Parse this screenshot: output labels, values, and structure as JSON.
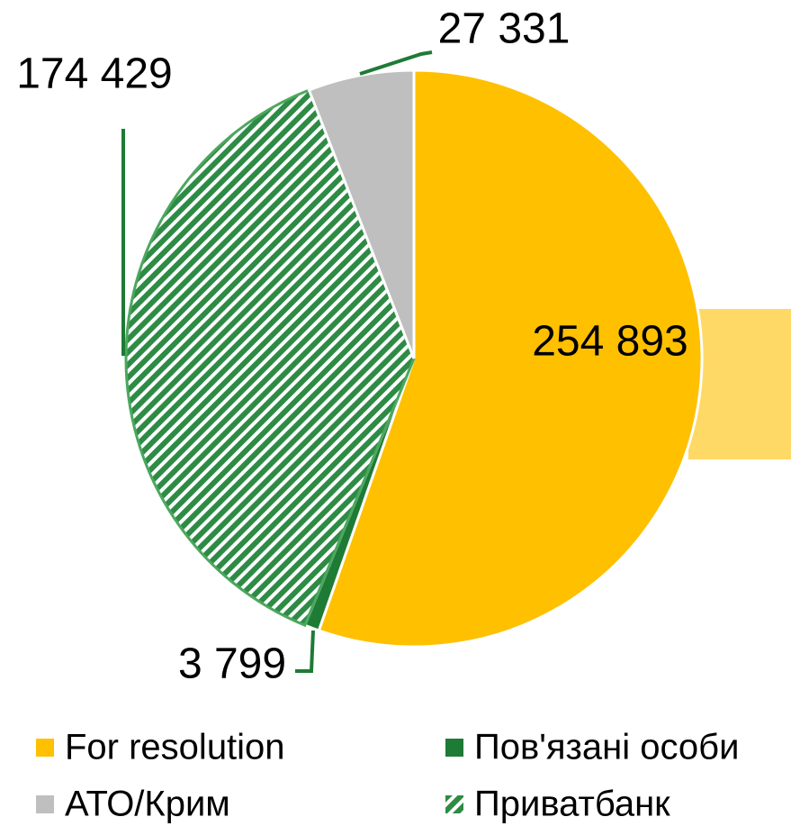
{
  "chart_data": {
    "type": "pie",
    "categories": [
      "For resolution",
      "Пов'язані особи",
      "Приватбанк",
      "АТО/Крим"
    ],
    "values": [
      254893,
      3799,
      174429,
      27331
    ],
    "value_labels": [
      "254 893",
      "3 799",
      "174 429",
      "27 331"
    ],
    "colors": [
      "#FFC000",
      "#1E7B35",
      "hatch",
      "#BFBFBF"
    ],
    "legend": "bottom"
  }
}
